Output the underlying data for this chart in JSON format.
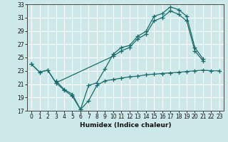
{
  "xlabel": "Humidex (Indice chaleur)",
  "line_color": "#1a6b6b",
  "bg_color": "#cce8e8",
  "grid_color": "#ffffff",
  "figsize": [
    3.2,
    2.0
  ],
  "dpi": 100,
  "ylim": [
    17,
    33
  ],
  "xlim": [
    -0.5,
    23.5
  ],
  "yticks": [
    17,
    19,
    21,
    23,
    25,
    27,
    29,
    31,
    33
  ],
  "xticks": [
    0,
    1,
    2,
    3,
    4,
    5,
    6,
    7,
    8,
    9,
    10,
    11,
    12,
    13,
    14,
    15,
    16,
    17,
    18,
    19,
    20,
    21,
    22,
    23
  ],
  "x_line1": [
    0,
    1,
    2,
    3,
    4,
    5,
    6,
    7,
    8,
    9,
    10,
    11,
    12,
    13,
    14,
    15,
    16,
    17,
    18,
    19,
    20,
    21
  ],
  "y_line1": [
    24.0,
    22.8,
    23.1,
    21.2,
    20.1,
    19.2,
    17.2,
    20.8,
    21.2,
    23.3,
    25.5,
    26.5,
    26.8,
    28.2,
    28.9,
    31.2,
    31.6,
    32.6,
    32.2,
    31.2,
    26.5,
    24.8
  ],
  "x_line2": [
    0,
    1,
    2,
    3,
    10,
    11,
    12,
    13,
    14,
    15,
    16,
    17,
    18,
    19,
    20,
    21
  ],
  "y_line2": [
    24.0,
    22.8,
    23.1,
    21.2,
    25.2,
    26.0,
    26.5,
    27.8,
    28.5,
    30.5,
    31.0,
    32.0,
    31.5,
    30.5,
    26.0,
    24.5
  ],
  "x_line3": [
    3,
    4,
    5,
    6,
    7,
    8,
    9,
    10,
    11,
    12,
    13,
    14,
    15,
    16,
    17,
    18,
    19,
    20,
    21,
    22,
    23
  ],
  "y_line3": [
    21.5,
    20.2,
    19.5,
    17.2,
    18.5,
    20.8,
    21.5,
    21.7,
    21.9,
    22.1,
    22.2,
    22.4,
    22.5,
    22.6,
    22.7,
    22.8,
    22.9,
    23.0,
    23.1,
    23.0,
    23.0
  ]
}
